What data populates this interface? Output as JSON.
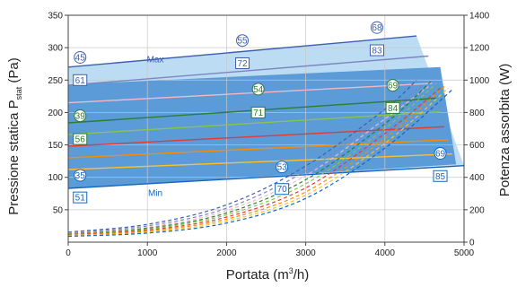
{
  "chart_data": {
    "type": "line",
    "xlabel": {
      "main": "Portata (m",
      "sup": "3",
      "tail": "/h)"
    },
    "ylabel_left": {
      "main": "Pressione statica  P",
      "sub": "stat",
      "tail": " (Pa)"
    },
    "ylabel_right": "Potenza assorbita (W)",
    "x_ticks": [
      "0",
      "1000",
      "2000",
      "3000",
      "4000",
      "5000"
    ],
    "y_left_ticks": [
      "50",
      "100",
      "150",
      "200",
      "250",
      "300",
      "350"
    ],
    "y_right_ticks": [
      "0",
      "200",
      "400",
      "600",
      "800",
      "1000",
      "1200",
      "1400"
    ],
    "xlim": [
      0,
      5000
    ],
    "ylim_left": [
      0,
      350
    ],
    "ylim_right": [
      0,
      1400
    ],
    "grid": true,
    "envelope": [
      [
        0,
        270
      ],
      [
        4400,
        318
      ],
      [
        5000,
        118
      ],
      [
        0,
        83
      ]
    ],
    "inner_band": [
      [
        0,
        243
      ],
      [
        4700,
        270
      ],
      [
        4900,
        120
      ],
      [
        0,
        83
      ]
    ],
    "pressure_curves": [
      {
        "name": "Max",
        "color": "#3e5fb0",
        "points": [
          [
            0,
            270
          ],
          [
            4400,
            318
          ]
        ]
      },
      {
        "color": "#7b86c0",
        "points": [
          [
            0,
            242
          ],
          [
            4550,
            287
          ]
        ]
      },
      {
        "color": "#f2b8c6",
        "points": [
          [
            0,
            215
          ],
          [
            4600,
            245
          ]
        ]
      },
      {
        "color": "#2e7d32",
        "points": [
          [
            0,
            184
          ],
          [
            4650,
            222
          ]
        ]
      },
      {
        "color": "#8bc34a",
        "points": [
          [
            0,
            166
          ],
          [
            4700,
            201
          ]
        ]
      },
      {
        "color": "#e53935",
        "points": [
          [
            0,
            148
          ],
          [
            4750,
            178
          ]
        ]
      },
      {
        "color": "#fb8c00",
        "points": [
          [
            0,
            130
          ],
          [
            4800,
            158
          ]
        ]
      },
      {
        "color": "#fbc02d",
        "points": [
          [
            0,
            112
          ],
          [
            4850,
            136
          ]
        ]
      },
      {
        "name": "Min",
        "color": "#1565c0",
        "points": [
          [
            0,
            83
          ],
          [
            5000,
            118
          ]
        ]
      }
    ],
    "power_curves": [
      {
        "color": "#3e5fb0",
        "points": [
          [
            0,
            62
          ],
          [
            1000,
            110
          ],
          [
            2000,
            230
          ],
          [
            3000,
            470
          ],
          [
            4000,
            820
          ],
          [
            4400,
            1000
          ]
        ]
      },
      {
        "color": "#7b86c0",
        "points": [
          [
            0,
            58
          ],
          [
            1000,
            100
          ],
          [
            2000,
            210
          ],
          [
            3000,
            440
          ],
          [
            4000,
            790
          ],
          [
            4500,
            980
          ]
        ]
      },
      {
        "color": "#f2b8c6",
        "points": [
          [
            0,
            55
          ],
          [
            1000,
            92
          ],
          [
            2000,
            195
          ],
          [
            3000,
            410
          ],
          [
            4000,
            760
          ],
          [
            4550,
            960
          ]
        ]
      },
      {
        "color": "#2e7d32",
        "points": [
          [
            0,
            52
          ],
          [
            1000,
            86
          ],
          [
            2000,
            180
          ],
          [
            3000,
            385
          ],
          [
            4000,
            730
          ],
          [
            4600,
            1000
          ]
        ]
      },
      {
        "color": "#8bc34a",
        "points": [
          [
            0,
            50
          ],
          [
            1000,
            80
          ],
          [
            2000,
            168
          ],
          [
            3000,
            360
          ],
          [
            4000,
            700
          ],
          [
            4650,
            980
          ]
        ]
      },
      {
        "color": "#e53935",
        "points": [
          [
            0,
            47
          ],
          [
            1000,
            74
          ],
          [
            2000,
            155
          ],
          [
            3000,
            335
          ],
          [
            4000,
            670
          ],
          [
            4700,
            950
          ]
        ]
      },
      {
        "color": "#fb8c00",
        "points": [
          [
            0,
            44
          ],
          [
            1000,
            68
          ],
          [
            2000,
            142
          ],
          [
            3000,
            310
          ],
          [
            4000,
            640
          ],
          [
            4750,
            960
          ]
        ]
      },
      {
        "color": "#fbc02d",
        "points": [
          [
            0,
            40
          ],
          [
            1000,
            62
          ],
          [
            2000,
            130
          ],
          [
            3000,
            290
          ],
          [
            4000,
            610
          ],
          [
            4800,
            950
          ]
        ]
      },
      {
        "color": "#1565c0",
        "points": [
          [
            0,
            36
          ],
          [
            1000,
            56
          ],
          [
            2000,
            118
          ],
          [
            3000,
            270
          ],
          [
            4000,
            580
          ],
          [
            4850,
            940
          ]
        ]
      }
    ],
    "annotations": [
      {
        "text": "45",
        "shape": "circle",
        "color": "#3e5fb0",
        "x": 150,
        "y": 285
      },
      {
        "text": "61",
        "shape": "square",
        "color": "#3e5fb0",
        "x": 150,
        "y": 250
      },
      {
        "text": "55",
        "shape": "circle",
        "color": "#3e5fb0",
        "x": 2200,
        "y": 311
      },
      {
        "text": "72",
        "shape": "square",
        "color": "#3e5fb0",
        "x": 2200,
        "y": 276
      },
      {
        "text": "68",
        "shape": "circle",
        "color": "#3e5fb0",
        "x": 3900,
        "y": 331
      },
      {
        "text": "83",
        "shape": "square",
        "color": "#3e5fb0",
        "x": 3900,
        "y": 296
      },
      {
        "text": "39",
        "shape": "circle",
        "color": "#2e7d32",
        "x": 150,
        "y": 195
      },
      {
        "text": "56",
        "shape": "square",
        "color": "#2e7d32",
        "x": 150,
        "y": 159
      },
      {
        "text": "54",
        "shape": "circle",
        "color": "#2e7d32",
        "x": 2400,
        "y": 236
      },
      {
        "text": "71",
        "shape": "square",
        "color": "#2e7d32",
        "x": 2400,
        "y": 200
      },
      {
        "text": "69",
        "shape": "circle",
        "color": "#2e7d32",
        "x": 4100,
        "y": 242
      },
      {
        "text": "84",
        "shape": "square",
        "color": "#2e7d32",
        "x": 4100,
        "y": 207
      },
      {
        "text": "35",
        "shape": "circle",
        "color": "#1565c0",
        "x": 150,
        "y": 103
      },
      {
        "text": "51",
        "shape": "square",
        "color": "#1565c0",
        "x": 150,
        "y": 69
      },
      {
        "text": "53",
        "shape": "circle",
        "color": "#1565c0",
        "x": 2700,
        "y": 116
      },
      {
        "text": "70",
        "shape": "square",
        "color": "#1565c0",
        "x": 2700,
        "y": 82
      },
      {
        "text": "69",
        "shape": "circle",
        "color": "#1565c0",
        "x": 4700,
        "y": 137
      },
      {
        "text": "85",
        "shape": "square",
        "color": "#1565c0",
        "x": 4700,
        "y": 102
      }
    ],
    "curve_labels": [
      {
        "text": "Max",
        "color": "#3e5fb0",
        "x": 1100,
        "y": 283
      },
      {
        "text": "Min",
        "color": "#1565c0",
        "x": 1100,
        "y": 77
      }
    ],
    "colors": {
      "envelope_fill": "#bcdcf3",
      "band_fill": "#5a9bd8",
      "grid": "#c8c8c8",
      "axis": "#444444"
    }
  }
}
